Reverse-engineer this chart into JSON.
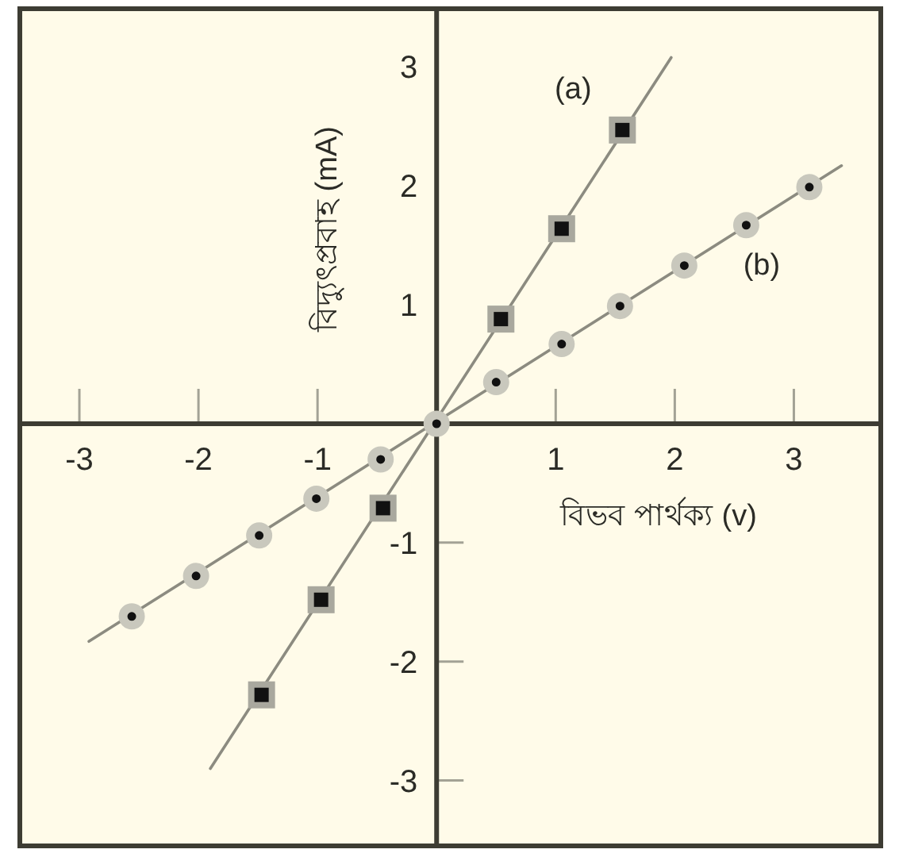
{
  "chart_data": {
    "type": "scatter",
    "xlabel": "বিভব পার্থক্য (v)",
    "ylabel": "বিদ্যুৎপ্রবাহ (mA)",
    "xlim": [
      -3.5,
      3.73
    ],
    "ylim": [
      -3.55,
      3.49
    ],
    "xticks": [
      -3,
      -2,
      -1,
      1,
      2,
      3
    ],
    "yticks": [
      -3,
      -2,
      -1,
      1,
      2,
      3
    ],
    "series": [
      {
        "type": "line",
        "marker": "none",
        "color": "#8c8b80",
        "x": [
          -1.9,
          1.97
        ],
        "values": [
          -2.9,
          3.08
        ]
      },
      {
        "name": "(a)",
        "type": "scatter",
        "marker": "square",
        "color": "#111111",
        "x": [
          -1.47,
          -0.97,
          -0.45,
          0.54,
          1.05,
          1.56
        ],
        "values": [
          -2.28,
          -1.48,
          -0.71,
          0.88,
          1.64,
          2.47
        ]
      },
      {
        "type": "line",
        "marker": "none",
        "color": "#8c8b80",
        "x": [
          -2.92,
          3.4
        ],
        "values": [
          -1.83,
          2.17
        ]
      },
      {
        "name": "(b)",
        "type": "scatter",
        "marker": "circle",
        "color": "#111111",
        "x": [
          -2.56,
          -2.02,
          -1.49,
          -1.01,
          -0.47,
          0,
          0.5,
          1.05,
          1.54,
          2.08,
          2.6,
          3.13
        ],
        "values": [
          -1.62,
          -1.28,
          -0.94,
          -0.63,
          -0.3,
          0,
          0.35,
          0.67,
          0.99,
          1.33,
          1.67,
          1.99
        ]
      }
    ]
  }
}
